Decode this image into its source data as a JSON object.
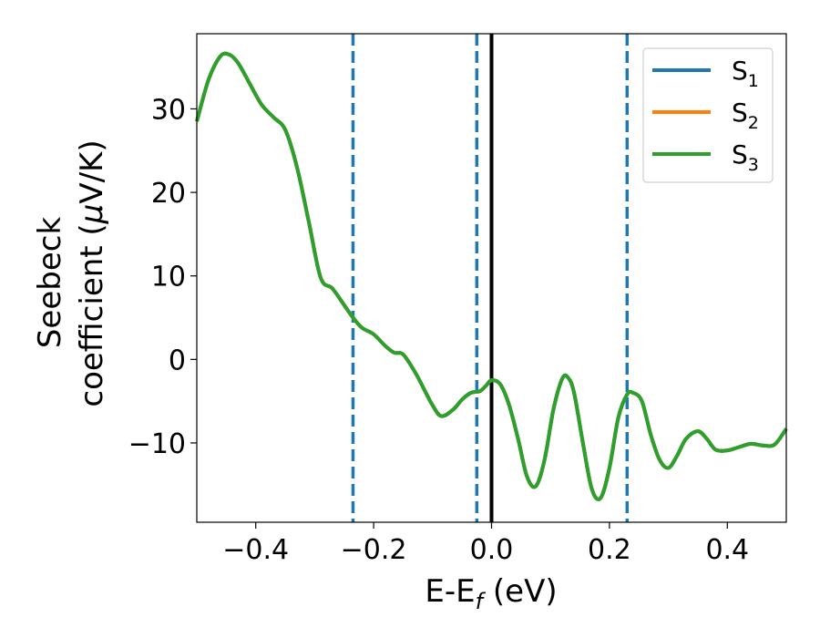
{
  "chart_data": {
    "type": "line",
    "title": "",
    "xlabel": "E-E",
    "xlabel_sub": "f",
    "xlabel_suffix": " (eV)",
    "ylabel_line1": "Seebeck",
    "ylabel_line2_prefix": "coefficient  (",
    "ylabel_mu": "μ",
    "ylabel_line2_suffix": "V/K)",
    "xlim": [
      -0.5,
      0.5
    ],
    "ylim": [
      -19.5,
      39
    ],
    "xticks": [
      -0.4,
      -0.2,
      0.0,
      0.2,
      0.4
    ],
    "xtick_labels": [
      "−0.4",
      "−0.2",
      "0.0",
      "0.2",
      "0.4"
    ],
    "yticks": [
      -10,
      0,
      10,
      20,
      30
    ],
    "ytick_labels": [
      "−10",
      "0",
      "10",
      "20",
      "30"
    ],
    "grid": false,
    "legend_position": "top-right",
    "series": [
      {
        "name": "S",
        "subscript": "1",
        "color": "#1f77b4",
        "x": [
          -0.5,
          -0.48,
          -0.46,
          -0.445,
          -0.43,
          -0.41,
          -0.39,
          -0.37,
          -0.35,
          -0.33,
          -0.31,
          -0.29,
          -0.27,
          -0.25,
          -0.235,
          -0.22,
          -0.2,
          -0.18,
          -0.165,
          -0.15,
          -0.13,
          -0.115,
          -0.1,
          -0.085,
          -0.065,
          -0.05,
          -0.035,
          -0.02,
          -0.01,
          0.0,
          0.015,
          0.03,
          0.045,
          0.06,
          0.075,
          0.09,
          0.105,
          0.12,
          0.13,
          0.14,
          0.155,
          0.17,
          0.185,
          0.2,
          0.215,
          0.23,
          0.24,
          0.255,
          0.27,
          0.285,
          0.3,
          0.315,
          0.33,
          0.35,
          0.365,
          0.38,
          0.4,
          0.42,
          0.44,
          0.46,
          0.48,
          0.5
        ],
        "y": [
          28.5,
          33.5,
          36.3,
          36.5,
          35.5,
          33.0,
          30.5,
          29.0,
          27.5,
          23.0,
          16.5,
          9.8,
          8.5,
          6.5,
          5.0,
          3.8,
          3.0,
          1.6,
          0.8,
          0.6,
          -1.5,
          -3.5,
          -5.5,
          -6.8,
          -6.0,
          -4.8,
          -4.0,
          -3.8,
          -3.2,
          -2.5,
          -3.0,
          -5.5,
          -9.5,
          -14.0,
          -15.2,
          -12.0,
          -6.0,
          -2.3,
          -2.2,
          -4.0,
          -10.0,
          -15.5,
          -16.6,
          -13.0,
          -7.0,
          -4.2,
          -4.0,
          -5.0,
          -9.0,
          -12.0,
          -13.0,
          -11.5,
          -9.5,
          -8.6,
          -9.5,
          -10.8,
          -10.9,
          -10.5,
          -10.1,
          -10.3,
          -10.2,
          -8.3
        ]
      },
      {
        "name": "S",
        "subscript": "2",
        "color": "#ff7f0e",
        "x": [
          -0.5,
          -0.48,
          -0.46,
          -0.445,
          -0.43,
          -0.41,
          -0.39,
          -0.37,
          -0.35,
          -0.33,
          -0.31,
          -0.29,
          -0.27,
          -0.25,
          -0.235,
          -0.22,
          -0.2,
          -0.18,
          -0.165,
          -0.15,
          -0.13,
          -0.115,
          -0.1,
          -0.085,
          -0.065,
          -0.05,
          -0.035,
          -0.02,
          -0.01,
          0.0,
          0.015,
          0.03,
          0.045,
          0.06,
          0.075,
          0.09,
          0.105,
          0.12,
          0.13,
          0.14,
          0.155,
          0.17,
          0.185,
          0.2,
          0.215,
          0.23,
          0.24,
          0.255,
          0.27,
          0.285,
          0.3,
          0.315,
          0.33,
          0.35,
          0.365,
          0.38,
          0.4,
          0.42,
          0.44,
          0.46,
          0.48,
          0.5
        ],
        "y": [
          28.5,
          33.5,
          36.3,
          36.5,
          35.5,
          33.0,
          30.5,
          29.0,
          27.5,
          23.0,
          16.5,
          9.8,
          8.5,
          6.5,
          5.0,
          3.8,
          3.0,
          1.6,
          0.8,
          0.6,
          -1.5,
          -3.5,
          -5.5,
          -6.8,
          -6.0,
          -4.8,
          -4.0,
          -3.8,
          -3.2,
          -2.5,
          -3.0,
          -5.5,
          -9.5,
          -14.0,
          -15.2,
          -12.0,
          -6.0,
          -2.3,
          -2.2,
          -4.0,
          -10.0,
          -15.5,
          -16.6,
          -13.0,
          -7.0,
          -4.2,
          -4.0,
          -5.0,
          -9.0,
          -12.0,
          -13.0,
          -11.5,
          -9.5,
          -8.6,
          -9.5,
          -10.8,
          -10.9,
          -10.5,
          -10.1,
          -10.3,
          -10.2,
          -8.3
        ]
      },
      {
        "name": "S",
        "subscript": "3",
        "color": "#2ca02c",
        "x": [
          -0.5,
          -0.48,
          -0.46,
          -0.445,
          -0.43,
          -0.41,
          -0.39,
          -0.37,
          -0.35,
          -0.33,
          -0.31,
          -0.29,
          -0.27,
          -0.25,
          -0.235,
          -0.22,
          -0.2,
          -0.18,
          -0.165,
          -0.15,
          -0.13,
          -0.115,
          -0.1,
          -0.085,
          -0.065,
          -0.05,
          -0.035,
          -0.02,
          -0.01,
          0.0,
          0.015,
          0.03,
          0.045,
          0.06,
          0.075,
          0.09,
          0.105,
          0.12,
          0.13,
          0.14,
          0.155,
          0.17,
          0.185,
          0.2,
          0.215,
          0.23,
          0.24,
          0.255,
          0.27,
          0.285,
          0.3,
          0.315,
          0.33,
          0.35,
          0.365,
          0.38,
          0.4,
          0.42,
          0.44,
          0.46,
          0.48,
          0.5
        ],
        "y": [
          28.5,
          33.5,
          36.3,
          36.5,
          35.5,
          33.0,
          30.5,
          29.0,
          27.5,
          23.0,
          16.5,
          9.8,
          8.5,
          6.5,
          5.0,
          3.8,
          3.0,
          1.6,
          0.8,
          0.6,
          -1.5,
          -3.5,
          -5.5,
          -6.8,
          -6.0,
          -4.8,
          -4.0,
          -3.8,
          -3.2,
          -2.5,
          -3.0,
          -5.5,
          -9.5,
          -14.0,
          -15.2,
          -12.0,
          -6.0,
          -2.3,
          -2.2,
          -4.0,
          -10.0,
          -15.5,
          -16.6,
          -13.0,
          -7.0,
          -4.2,
          -4.0,
          -5.0,
          -9.0,
          -12.0,
          -13.0,
          -11.5,
          -9.5,
          -8.6,
          -9.5,
          -10.8,
          -10.9,
          -10.5,
          -10.1,
          -10.3,
          -10.2,
          -8.3
        ]
      }
    ],
    "vlines": [
      {
        "x": -0.235,
        "style": "dashed",
        "color": "#1f77b4"
      },
      {
        "x": -0.025,
        "style": "dashed",
        "color": "#1f77b4"
      },
      {
        "x": 0.0,
        "style": "solid",
        "color": "#000000"
      },
      {
        "x": 0.23,
        "style": "dashed",
        "color": "#1f77b4"
      }
    ]
  }
}
